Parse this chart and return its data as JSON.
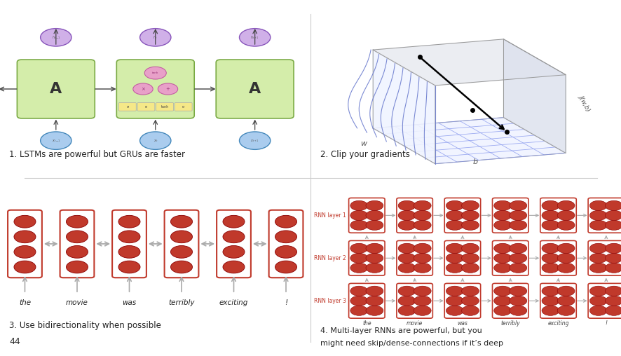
{
  "panel1_caption": "1. LSTMs are powerful but GRUs are faster",
  "panel2_caption": "2. Clip your gradients",
  "panel3_caption": "3. Use bidirectionality when possible",
  "panel4_line1": "4. Multi-layer RNNs are powerful, but you",
  "panel4_line2": "might need skip/dense-connections if it’s deep",
  "slide_number": "44",
  "words": [
    "the",
    "movie",
    "was",
    "terribly",
    "exciting",
    "!"
  ],
  "rnn_layers": [
    "RNN layer 3",
    "RNN layer 2",
    "RNN layer 1"
  ],
  "bg_color": "#ffffff",
  "red_color": "#c0392b",
  "red_dark": "#8b0000",
  "arrow_color": "#aaaaaa",
  "green_fill": "#d4edaa",
  "green_edge": "#7aaa44",
  "blue_fill": "#aaccee",
  "blue_edge": "#4488bb",
  "purple_fill": "#d0b0e8",
  "purple_edge": "#8855bb",
  "divider_color": "#cccccc",
  "text_color": "#222222",
  "gray_text": "#555555",
  "yellow_fill": "#f5e888",
  "pink_fill": "#e8a0c8",
  "pink_edge": "#c050a0"
}
